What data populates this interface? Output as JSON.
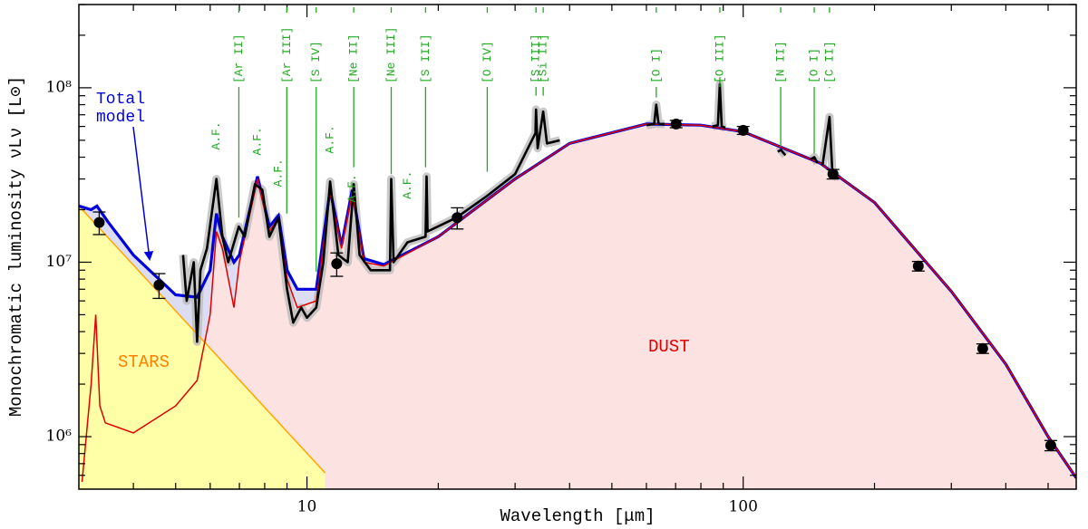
{
  "chart_data": {
    "type": "line",
    "x_label": "Wavelength [μm]",
    "y_label": "Monochromatic luminosity νLν [L⊙]",
    "xscale": "log",
    "yscale": "log",
    "xlim": [
      3,
      580
    ],
    "ylim": [
      500000,
      300000000
    ],
    "xticks": [
      10,
      100
    ],
    "yticks": [
      {
        "value": 1000000,
        "label": "10⁶"
      },
      {
        "value": 10000000,
        "label": "10⁷"
      },
      {
        "value": 100000000,
        "label": "10⁸"
      }
    ],
    "xminorticks": [
      4,
      5,
      6,
      7,
      8,
      9,
      20,
      30,
      40,
      50,
      60,
      70,
      80,
      90,
      200,
      300,
      400,
      500
    ],
    "yminorticks": [
      600000,
      700000,
      800000,
      900000,
      2000000,
      3000000,
      4000000,
      5000000,
      6000000,
      7000000,
      8000000,
      9000000,
      20000000,
      30000000,
      40000000,
      50000000,
      60000000,
      70000000,
      80000000,
      90000000,
      200000000,
      300000000
    ],
    "series": [
      {
        "name": "Total model",
        "color": "#0000dd",
        "fill": "#dcdcf2",
        "x": [
          3,
          3.2,
          3.3,
          3.5,
          4,
          5,
          5.6,
          6,
          6.2,
          6.4,
          6.8,
          7,
          7.7,
          8.2,
          8.6,
          9,
          9.5,
          10.5,
          11.3,
          12,
          12.7,
          13.5,
          15,
          20,
          30,
          40,
          60,
          80,
          100,
          150,
          200,
          300,
          400,
          500,
          580
        ],
        "values": [
          21000000,
          20000000,
          21000000,
          17000000,
          11000000,
          6500000,
          6300000,
          9000000,
          19000000,
          14000000,
          10000000,
          11000000,
          31000000,
          16000000,
          18500000,
          9000000,
          7000000,
          7000000,
          26000000,
          12500000,
          26000000,
          10500000,
          9700000,
          14000000,
          30000000,
          48000000,
          62000000,
          61000000,
          56000000,
          37000000,
          22000000,
          6800000,
          2600000,
          1000000,
          580000
        ]
      },
      {
        "name": "DUST",
        "color": "#e00000",
        "fill": "#fde2e2",
        "x": [
          3.05,
          3.2,
          3.28,
          3.35,
          3.45,
          4,
          5,
          5.6,
          6,
          6.2,
          6.4,
          6.8,
          7,
          7.7,
          8.2,
          8.6,
          9,
          9.5,
          10.5,
          11.3,
          12,
          12.7,
          13.5,
          15,
          20,
          30,
          40,
          60,
          80,
          100,
          150,
          200,
          300,
          400,
          500,
          580
        ],
        "values": [
          550000,
          2000000,
          5000000,
          1500000,
          1200000,
          1050000,
          1500000,
          2100000,
          5000000,
          15000000,
          12000000,
          5500000,
          10000000,
          30000000,
          15000000,
          18000000,
          8000000,
          5500000,
          6000000,
          25000000,
          12000000,
          25000000,
          10000000,
          9500000,
          14000000,
          30000000,
          48000000,
          62000000,
          61000000,
          56000000,
          37000000,
          22000000,
          6800000,
          2600000,
          1000000,
          580000
        ]
      },
      {
        "name": "STARS",
        "color": "#ffa500",
        "fill": "#ffffa8",
        "x": [
          3,
          11
        ],
        "values": [
          21000000,
          620000
        ]
      },
      {
        "color": "#000000",
        "x": [
          5.2,
          5.3,
          5.5,
          5.6,
          5.7,
          5.9,
          6.2,
          6.4,
          6.6,
          6.98,
          7.2,
          7.6,
          7.9,
          8.2,
          8.6,
          9,
          9.3,
          9.7,
          10,
          10.5,
          10.9,
          11.3,
          11.8,
          12.4,
          12.8,
          13.2,
          14,
          15.5,
          15.6,
          15.8,
          17,
          18.7,
          18.8,
          18.9,
          22,
          25.9,
          30,
          33.4,
          33.5,
          33.8,
          34.8,
          35.5,
          38,
          null,
          60,
          62.5,
          63.2,
          64,
          66,
          null,
          85,
          87.5,
          88.4,
          89.3,
          91,
          null,
          120,
          122,
          125,
          null,
          143,
          145.5,
          148,
          null,
          152,
          157.7,
          160,
          165
        ],
        "values": [
          11000000,
          6000000,
          10000000,
          3500000,
          9000000,
          12000000,
          30000000,
          14000000,
          10000000,
          16000000,
          14000000,
          28000000,
          26000000,
          14000000,
          18000000,
          7000000,
          4500000,
          5500000,
          4800000,
          5500000,
          10000000,
          29000000,
          11000000,
          10000000,
          28000000,
          11000000,
          9000000,
          9000000,
          30000000,
          10000000,
          13000000,
          14000000,
          31000000,
          15000000,
          18000000,
          24000000,
          32000000,
          55000000,
          75000000,
          45000000,
          73000000,
          48000000,
          50000000,
          null,
          61000000,
          62000000,
          80000000,
          62000000,
          62000000,
          null,
          60000000,
          61000000,
          105000000,
          60000000,
          59000000,
          null,
          43000000,
          44000000,
          41000000,
          null,
          39000000,
          40000000,
          37000000,
          null,
          36000000,
          68000000,
          34000000,
          30000000
        ]
      },
      {
        "type": "scatter",
        "color": "#000000",
        "x": [
          3.34,
          4.58,
          11.7,
          22.1,
          70.2,
          100,
          160.6,
          252,
          354,
          507
        ],
        "values": [
          16900000,
          7400000,
          9800000,
          18000000,
          62000000,
          57000000,
          32000000,
          9500000,
          3200000,
          890000
        ],
        "errors": [
          2500000,
          1200000,
          1500000,
          2500000,
          3000000,
          3000000,
          2000000,
          600000,
          200000,
          60000
        ]
      }
    ],
    "line_labels": [
      {
        "text": "[Ar II]",
        "x": 6.98,
        "y": 18000000
      },
      {
        "text": "[Ar III]",
        "x": 8.99,
        "y": 19000000
      },
      {
        "text": "[S IV]",
        "x": 10.5,
        "y": 8800000
      },
      {
        "text": "[Ne II]",
        "x": 12.8,
        "y": 35000000
      },
      {
        "text": "[Ne III]",
        "x": 15.6,
        "y": 32000000
      },
      {
        "text": "[S III]",
        "x": 18.7,
        "y": 35000000
      },
      {
        "text": "[O IV]",
        "x": 25.9,
        "y": 33000000
      },
      {
        "text": "[S III]",
        "x": 33.5,
        "y": 90000000
      },
      {
        "text": "[Si II]",
        "x": 34.8,
        "y": 90000000
      },
      {
        "text": "[O I]",
        "x": 63.2,
        "y": 88000000
      },
      {
        "text": "[O III]",
        "x": 88.4,
        "y": 115000000
      },
      {
        "text": "[N II]",
        "x": 121.9,
        "y": 46000000
      },
      {
        "text": "[O I]",
        "x": 145.5,
        "y": 42000000
      },
      {
        "text": "[C II]",
        "x": 157.7,
        "y": 100000000
      }
    ],
    "feature_labels": [
      {
        "text": "A.F.",
        "x": 6.2,
        "y": 44000000
      },
      {
        "text": "A.F.",
        "x": 7.7,
        "y": 41000000
      },
      {
        "text": "A.F.",
        "x": 8.6,
        "y": 27000000
      },
      {
        "text": "A.F.",
        "x": 11.3,
        "y": 42000000
      },
      {
        "text": "A.F.",
        "x": 12.7,
        "y": 22000000
      },
      {
        "text": "A.F.",
        "x": 17.0,
        "y": 23000000
      }
    ]
  }
}
